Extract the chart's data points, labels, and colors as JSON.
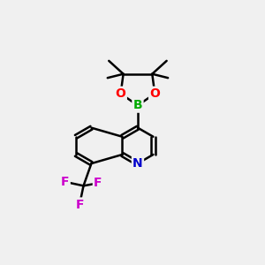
{
  "bg_color": "#f0f0f0",
  "atom_colors": {
    "C": "#000000",
    "H": "#000000",
    "O": "#ff0000",
    "B": "#00aa00",
    "N": "#0000cc",
    "F": "#cc00cc"
  },
  "bond_color": "#000000",
  "bond_width": 1.8,
  "figsize": [
    3.0,
    3.0
  ],
  "dpi": 100
}
